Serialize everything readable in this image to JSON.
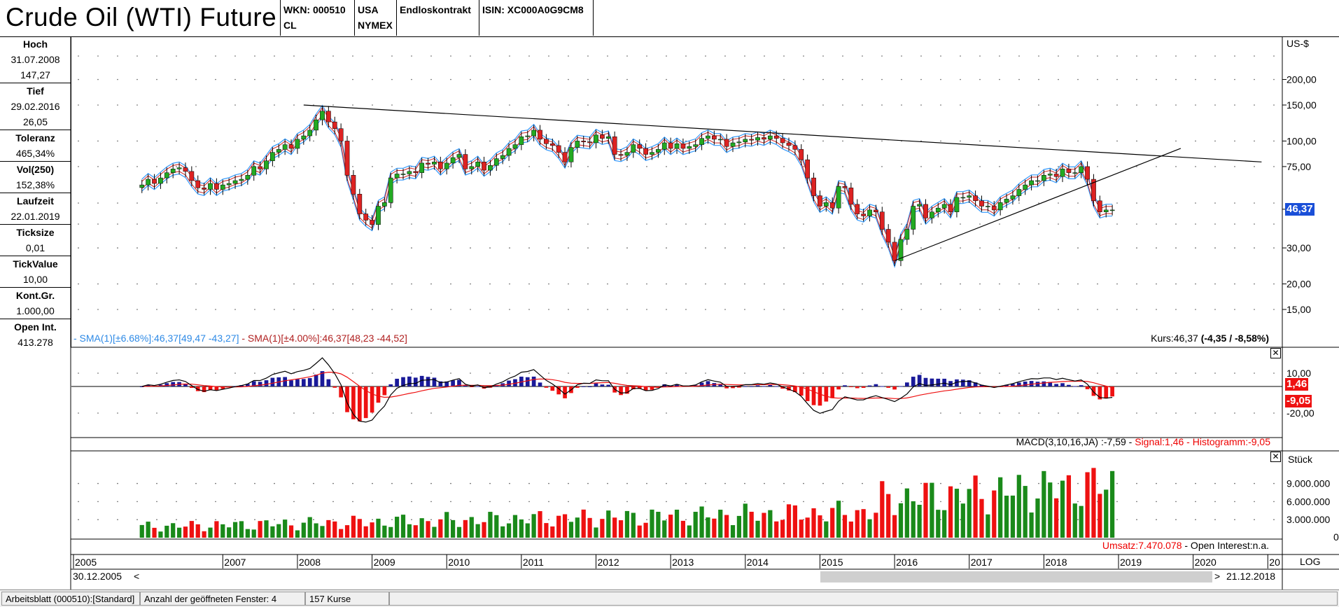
{
  "header": {
    "title": "Crude Oil (WTI) Future",
    "wkn": "WKN: 000510",
    "symbol": "CL",
    "country": "USA",
    "exchange": "NYMEX",
    "contract": "Endloskontrakt",
    "isin": "ISIN: XC000A0G9CM8"
  },
  "sidebar": [
    {
      "label": "Hoch",
      "values": [
        "31.07.2008",
        "147,27"
      ]
    },
    {
      "label": "Tief",
      "values": [
        "29.02.2016",
        "26,05"
      ]
    },
    {
      "label": "Toleranz",
      "values": [
        "465,34%"
      ]
    },
    {
      "label": "Vol(250)",
      "values": [
        "152,38%"
      ]
    },
    {
      "label": "Laufzeit",
      "values": [
        "22.01.2019"
      ]
    },
    {
      "label": "Ticksize",
      "values": [
        "0,01"
      ]
    },
    {
      "label": "TickValue",
      "values": [
        "10,00"
      ]
    },
    {
      "label": "Kont.Gr.",
      "values": [
        "1.000,00"
      ]
    },
    {
      "label": "Open Int.",
      "values": [
        "413.278"
      ]
    }
  ],
  "price_panel": {
    "currency": "US-$",
    "sma1_label": "- SMA(1)[±6.68%]:46,37[49,47 -43,27]",
    "sma2_label": "- SMA(1)[±4.00%]:46,37[48,23 -44,52]",
    "kurs_prefix": "Kurs:46,37 ",
    "kurs_change": "(-4,35 / -8,58%)",
    "last_value": "46,37",
    "colors": {
      "band_blue": "#3399ff",
      "band_red": "#cc2222",
      "candle_up": "#22aa22",
      "candle_down": "#dd2222",
      "last_box": "#1a4fd8"
    }
  },
  "macd_panel": {
    "label_prefix": "MACD(3,10,16,JA) :-7,59 - ",
    "signal_label": "Signal:1,46",
    "hist_label": " - Histogramm:-9,05",
    "signal_value": "1,46",
    "hist_value": "-9,05",
    "colors": {
      "hist_pos": "#1a1a99",
      "hist_neg": "#ee1111",
      "signal": "#ee1111",
      "macd": "#000000"
    }
  },
  "volume_panel": {
    "unit": "Stück",
    "umsatz_label": "Umsatz:7.470.078",
    "oi_label": " - Open Interest:n.a."
  },
  "time_axis": {
    "start_date": "30.12.2005",
    "end_date": "21.12.2018",
    "scroll_left": "<",
    "scroll_right": ">",
    "log_label": "LOG"
  },
  "statusbar": {
    "sheet": "Arbeitsblatt (000510):[Standard]",
    "windows": "Anzahl der geöffneten Fenster: 4",
    "count": "157 Kurse"
  },
  "chart_data": [
    {
      "type": "candlestick",
      "title": "Crude Oil (WTI) Future",
      "yscale": "log",
      "ylabel": "US-$",
      "y_ticks": [
        "15,00",
        "20,00",
        "30,00",
        "46,37",
        "75,00",
        "100,00",
        "150,00",
        "200,00"
      ],
      "x_ticks": [
        "2005",
        "2007",
        "2008",
        "2009",
        "2010",
        "2011",
        "2012",
        "2013",
        "2014",
        "2015",
        "2016",
        "2017",
        "2018",
        "2019",
        "2020",
        "20"
      ],
      "interval": "monthly",
      "x_start": "2005-12",
      "x_end": "2018-12",
      "close": [
        61,
        65,
        62,
        66,
        70,
        73,
        74,
        71,
        64,
        59,
        58,
        62,
        58,
        61,
        62,
        64,
        65,
        68,
        75,
        73,
        80,
        88,
        91,
        96,
        92,
        102,
        106,
        113,
        127,
        140,
        124,
        115,
        100,
        68,
        55,
        44,
        41,
        39,
        48,
        50,
        66,
        69,
        69,
        71,
        70,
        78,
        77,
        79,
        73,
        78,
        83,
        86,
        73,
        75,
        79,
        72,
        76,
        82,
        85,
        92,
        96,
        105,
        106,
        113,
        102,
        97,
        95,
        88,
        79,
        93,
        100,
        99,
        98,
        107,
        103,
        105,
        86,
        85,
        88,
        96,
        92,
        86,
        88,
        91,
        98,
        92,
        97,
        92,
        94,
        96,
        103,
        106,
        102,
        102,
        94,
        98,
        99,
        102,
        101,
        104,
        102,
        106,
        103,
        98,
        95,
        91,
        81,
        66,
        54,
        48,
        50,
        47,
        60,
        59,
        49,
        44,
        43,
        46,
        45,
        37,
        32,
        26,
        33,
        37,
        48,
        49,
        42,
        45,
        47,
        49,
        45,
        53,
        53,
        54,
        51,
        48,
        48,
        46,
        50,
        52,
        54,
        58,
        61,
        64,
        64,
        68,
        69,
        67,
        73,
        70,
        70,
        75,
        65,
        51,
        45,
        46,
        46
      ],
      "trendlines": [
        {
          "from": [
            "2008-02",
            150
          ],
          "to": [
            "2020-12",
            79
          ]
        },
        {
          "from": [
            "2016-01",
            26
          ],
          "to": [
            "2019-11",
            92
          ]
        }
      ]
    },
    {
      "type": "line",
      "title": "MACD(3,10,16,JA)",
      "y_ticks": [
        "10,00",
        "-20,00"
      ],
      "last": {
        "macd": -7.59,
        "signal": 1.46,
        "histogram": -9.05
      }
    },
    {
      "type": "bar",
      "title": "Umsatz",
      "ylabel": "Stück",
      "y_ticks": [
        "3.000.000",
        "6.000.000",
        "9.000.000",
        "0"
      ],
      "last_value": 7470078
    }
  ]
}
